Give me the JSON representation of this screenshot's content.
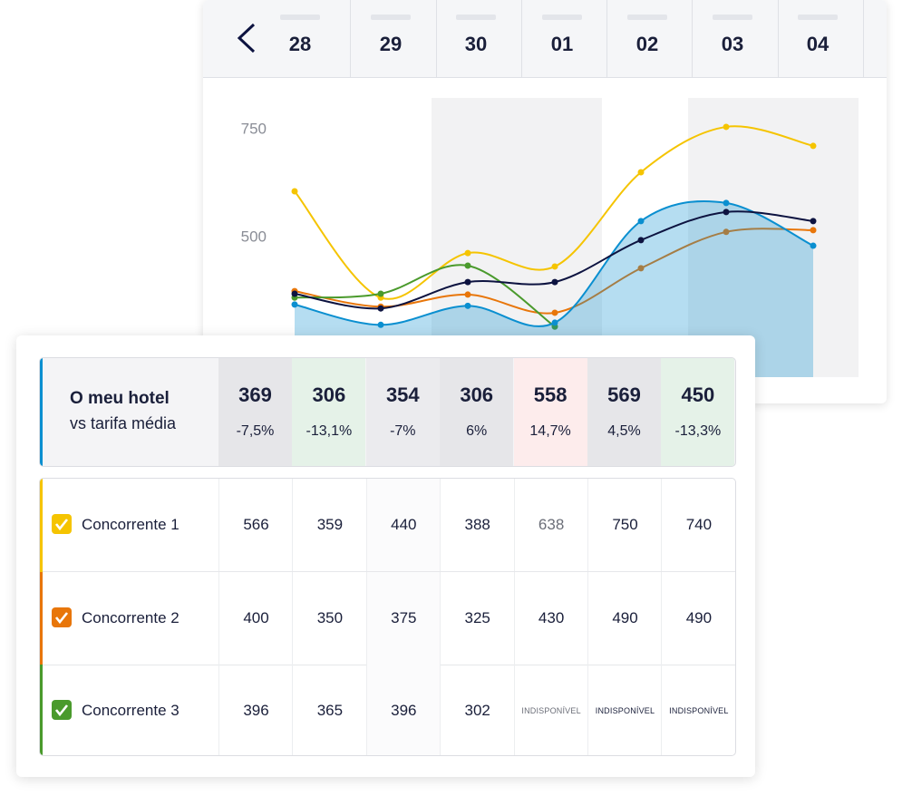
{
  "dates": [
    "28",
    "29",
    "30",
    "01",
    "02",
    "03",
    "04"
  ],
  "chart_data": {
    "type": "line",
    "ylim": [
      177,
      823
    ],
    "yticks": [
      500,
      750
    ],
    "series": [
      {
        "color": "#f5c400",
        "values": [
          607,
          361,
          464,
          433,
          651,
          756,
          712
        ]
      },
      {
        "color": "#e8760a",
        "values": [
          376,
          340,
          368,
          326,
          429,
          513,
          517
        ]
      },
      {
        "color": "#4a9a2c",
        "values": [
          361,
          370,
          435,
          294,
          null,
          null,
          null
        ]
      },
      {
        "color": "#0a8fd0",
        "area": true,
        "values": [
          345,
          298,
          342,
          303,
          538,
          580,
          481
        ]
      },
      {
        "color": "#0d1340",
        "values": [
          370,
          336,
          397,
          397,
          494,
          559,
          538
        ]
      }
    ]
  },
  "my_hotel": {
    "title": "O meu hotel",
    "subtitle": "vs tarifa média",
    "color": "#0a8fd0",
    "rates": [
      369,
      306,
      354,
      306,
      558,
      569,
      450
    ],
    "diffs": [
      "-7,5%",
      "-13,1%",
      "-7%",
      "6%",
      "14,7%",
      "4,5%",
      "-13,3%"
    ],
    "trend": [
      null,
      "down",
      null,
      null,
      "up",
      null,
      "down"
    ]
  },
  "competitors": [
    {
      "name": "Concorrente 1",
      "color": "#f5c400",
      "rates": [
        566,
        359,
        440,
        388,
        638,
        750,
        740
      ]
    },
    {
      "name": "Concorrente 2",
      "color": "#e8760a",
      "rates": [
        400,
        350,
        375,
        325,
        430,
        490,
        490
      ]
    },
    {
      "name": "Concorrente 3",
      "color": "#4a9a2c",
      "rates": [
        396,
        365,
        396,
        302,
        "INDISPONÍVEL",
        "INDISPONÍVEL",
        "INDISPONÍVEL"
      ]
    }
  ]
}
